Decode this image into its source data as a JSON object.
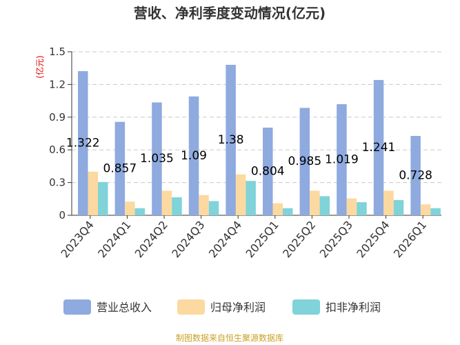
{
  "chart_data": {
    "type": "bar",
    "title": "营收、净利季度变动情况(亿元)",
    "unit_label": "(亿元)",
    "categories": [
      "2023Q4",
      "2024Q1",
      "2024Q2",
      "2024Q3",
      "2024Q4",
      "2025Q1",
      "2025Q2",
      "2025Q3",
      "2025Q4",
      "2026Q1"
    ],
    "series": [
      {
        "name": "营业总收入",
        "color": "#8eaadf",
        "values": [
          1.322,
          0.857,
          1.035,
          1.09,
          1.38,
          0.804,
          0.985,
          1.019,
          1.241,
          0.728
        ],
        "labels": [
          "1.322",
          "0.857",
          "1.035",
          "1.09",
          "1.38",
          "0.804",
          "0.985",
          "1.019",
          "1.241",
          "0.728"
        ]
      },
      {
        "name": "归母净利润",
        "color": "#fcd9a0",
        "values": [
          0.4,
          0.125,
          0.225,
          0.185,
          0.375,
          0.11,
          0.225,
          0.155,
          0.225,
          0.1
        ]
      },
      {
        "name": "扣非净利润",
        "color": "#7fd3d9",
        "values": [
          0.305,
          0.065,
          0.165,
          0.13,
          0.315,
          0.065,
          0.175,
          0.12,
          0.14,
          0.065
        ]
      }
    ],
    "yticks": [
      "0",
      "0.3",
      "0.6",
      "0.9",
      "1.2",
      "1.5"
    ],
    "ylim": [
      0,
      1.5
    ],
    "grid": true,
    "legend_position": "bottom"
  },
  "source_note": "制图数据来自恒生聚源数据库"
}
